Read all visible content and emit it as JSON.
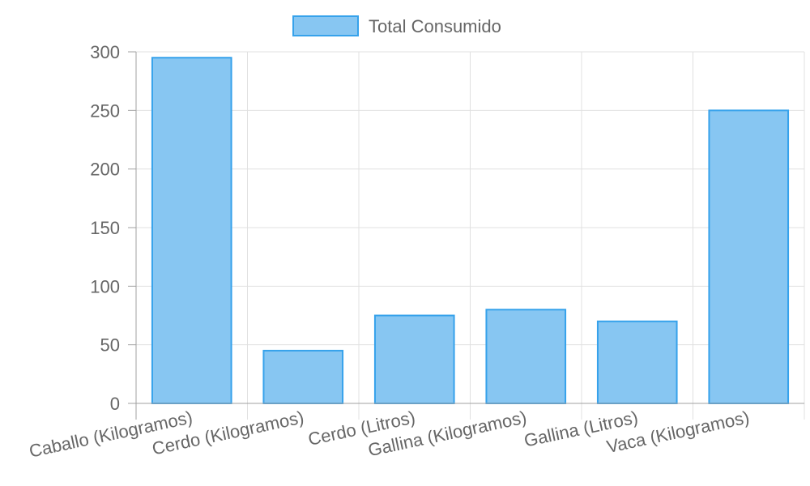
{
  "chart_data": {
    "type": "bar",
    "categories": [
      "Caballo (Kilogramos)",
      "Cerdo (Kilogramos)",
      "Cerdo (Litros)",
      "Gallina (Kilogramos)",
      "Gallina (Litros)",
      "Vaca (Kilogramos)"
    ],
    "series": [
      {
        "name": "Total Consumido",
        "values": [
          295,
          45,
          75,
          80,
          70,
          250
        ]
      }
    ],
    "ylim": [
      0,
      300
    ],
    "yticks": [
      "0",
      "50",
      "100",
      "150",
      "200",
      "250",
      "300"
    ],
    "grid": true,
    "legend_position": "top",
    "colors": {
      "bar_fill": "#87c6f2",
      "bar_border": "#36a2eb",
      "grid": "#e0e0e0",
      "axis": "#a0a0a0",
      "text": "#666666"
    }
  }
}
